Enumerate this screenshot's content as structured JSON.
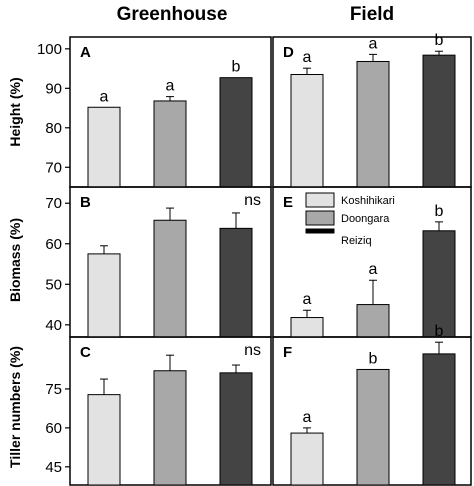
{
  "figure": {
    "col_titles": [
      "Greenhouse",
      "Field"
    ],
    "row_labels": [
      "Height (%)",
      "Biomass (%)",
      "Tiller numbers (%)"
    ]
  },
  "colors": {
    "Koshihikari": "#e2e2e2",
    "Doongara": "#a8a8a8",
    "Reiziq": "#444444"
  },
  "legend": {
    "items": [
      {
        "name": "Koshihikari",
        "color": "#e2e2e2"
      },
      {
        "name": "Doongara",
        "color": "#a8a8a8"
      },
      {
        "name": "Reiziq",
        "color": "#000000"
      }
    ]
  },
  "chart_data": [
    {
      "type": "bar",
      "panel": "A",
      "row": 0,
      "col": 0,
      "categories": [
        "Koshihikari",
        "Doongara",
        "Reiziq"
      ],
      "values": [
        85.2,
        86.8,
        92.7
      ],
      "errors": [
        0,
        1.1,
        0
      ],
      "labels": [
        "a",
        "a",
        "b"
      ],
      "ylim": [
        65,
        103
      ],
      "yticks": [
        70,
        80,
        90,
        100
      ],
      "annotation": ""
    },
    {
      "type": "bar",
      "panel": "D",
      "row": 0,
      "col": 1,
      "categories": [
        "Koshihikari",
        "Doongara",
        "Reiziq"
      ],
      "values": [
        93.5,
        96.8,
        98.4
      ],
      "errors": [
        1.6,
        1.8,
        1.0
      ],
      "labels": [
        "a",
        "a",
        "b"
      ],
      "ylim": [
        65,
        103
      ],
      "yticks": [],
      "annotation": ""
    },
    {
      "type": "bar",
      "panel": "B",
      "row": 1,
      "col": 0,
      "categories": [
        "Koshihikari",
        "Doongara",
        "Reiziq"
      ],
      "values": [
        57.5,
        65.8,
        63.8
      ],
      "errors": [
        2.0,
        3.0,
        3.8
      ],
      "labels": [
        "",
        "",
        ""
      ],
      "ylim": [
        37,
        74
      ],
      "yticks": [
        40,
        50,
        60,
        70
      ],
      "annotation": "ns"
    },
    {
      "type": "bar",
      "panel": "E",
      "row": 1,
      "col": 1,
      "categories": [
        "Koshihikari",
        "Doongara",
        "Reiziq"
      ],
      "values": [
        41.8,
        45.0,
        63.2
      ],
      "errors": [
        1.8,
        6.0,
        2.2
      ],
      "labels": [
        "a",
        "a",
        "b"
      ],
      "ylim": [
        37,
        74
      ],
      "yticks": [],
      "annotation": ""
    },
    {
      "type": "bar",
      "panel": "C",
      "row": 2,
      "col": 0,
      "categories": [
        "Koshihikari",
        "Doongara",
        "Reiziq"
      ],
      "values": [
        72.8,
        82.0,
        81.2
      ],
      "errors": [
        6.0,
        6.0,
        3.0
      ],
      "labels": [
        "",
        "",
        ""
      ],
      "ylim": [
        38,
        95
      ],
      "yticks": [
        45,
        60,
        75
      ],
      "annotation": "ns"
    },
    {
      "type": "bar",
      "panel": "F",
      "row": 2,
      "col": 1,
      "categories": [
        "Koshihikari",
        "Doongara",
        "Reiziq"
      ],
      "values": [
        58.0,
        82.5,
        88.5
      ],
      "errors": [
        2.0,
        0,
        4.5
      ],
      "labels": [
        "a",
        "b",
        "b"
      ],
      "ylim": [
        38,
        95
      ],
      "yticks": [],
      "annotation": ""
    }
  ]
}
